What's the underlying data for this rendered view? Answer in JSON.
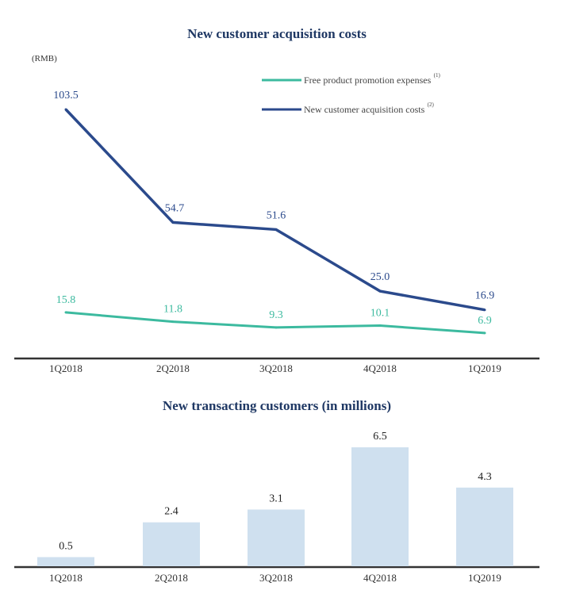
{
  "colors": {
    "promo": "#3cba9f",
    "acq": "#2b4a8c",
    "bar": "#cfe0ef",
    "axis": "#333333",
    "title": "#1f3864"
  },
  "chart_data": [
    {
      "type": "line",
      "title": "New customer acquisition costs",
      "unit": "(RMB)",
      "categories": [
        "1Q2018",
        "2Q2018",
        "3Q2018",
        "4Q2018",
        "1Q2019"
      ],
      "ylim": [
        0,
        110
      ],
      "legend_position": "top-right",
      "grid": false,
      "series": [
        {
          "name": "Free product promotion expenses",
          "note": "(1)",
          "color": "#3cba9f",
          "values": [
            15.8,
            11.8,
            9.3,
            10.1,
            6.9
          ],
          "labels": [
            "15.8",
            "11.8",
            "9.3",
            "10.1",
            "6.9"
          ]
        },
        {
          "name": "New customer acquisition costs",
          "note": "(2)",
          "color": "#2b4a8c",
          "values": [
            103.5,
            54.7,
            51.6,
            25.0,
            16.9
          ],
          "labels": [
            "103.5",
            "54.7",
            "51.6",
            "25.0",
            "16.9"
          ]
        }
      ]
    },
    {
      "type": "bar",
      "title": "New transacting customers (in millions)",
      "categories": [
        "1Q2018",
        "2Q2018",
        "3Q2018",
        "4Q2018",
        "1Q2019"
      ],
      "values": [
        0.5,
        2.4,
        3.1,
        6.5,
        4.3
      ],
      "labels": [
        "0.5",
        "2.4",
        "3.1",
        "6.5",
        "4.3"
      ],
      "ylim": [
        0,
        7
      ],
      "grid": false
    }
  ]
}
